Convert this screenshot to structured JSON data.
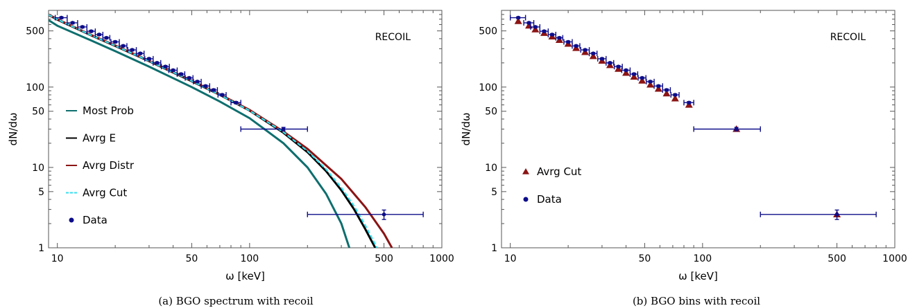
{
  "chart_data": [
    {
      "type": "line",
      "caption": "(a) BGO spectrum with recoil",
      "xlabel": "ω [keV]",
      "ylabel": "dN/dω",
      "annotation": "RECOIL",
      "x_scale": "log",
      "y_scale": "log",
      "xlim": [
        9,
        1000
      ],
      "ylim": [
        1,
        900
      ],
      "x_ticks": [
        "10",
        "50",
        "100",
        "500",
        "1000"
      ],
      "y_ticks": [
        "1",
        "5",
        "10",
        "50",
        "100",
        "500"
      ],
      "legend_position": "left",
      "series": [
        {
          "name": "Most Prob",
          "color": "#0e6e6e",
          "x": [
            9,
            10,
            15,
            20,
            30,
            50,
            70,
            100,
            150,
            200,
            250,
            300,
            330
          ],
          "y": [
            680,
            580,
            380,
            280,
            180,
            100,
            66,
            41,
            20,
            10,
            4.7,
            2.0,
            1.0
          ]
        },
        {
          "name": "Avrg E",
          "color": "#000000",
          "x": [
            9,
            10,
            15,
            20,
            30,
            50,
            70,
            100,
            150,
            200,
            250,
            300,
            350,
            400,
            450
          ],
          "y": [
            790,
            690,
            440,
            325,
            210,
            118,
            80,
            51,
            27,
            15.5,
            9,
            5.2,
            3.0,
            1.7,
            1.0
          ]
        },
        {
          "name": "Avrg Distr",
          "color": "#8b1414",
          "x": [
            9,
            10,
            15,
            20,
            30,
            50,
            70,
            100,
            150,
            200,
            300,
            400,
            500,
            550
          ],
          "y": [
            800,
            700,
            445,
            330,
            213,
            120,
            81,
            52,
            28,
            17,
            7.2,
            3.2,
            1.5,
            1.0
          ]
        },
        {
          "name": "Avrg Cut",
          "color": "#33e0f0",
          "dash": "6 3",
          "x": [
            9,
            10,
            15,
            20,
            30,
            50,
            70,
            100,
            150,
            200,
            250,
            300,
            350,
            400,
            460
          ],
          "y": [
            795,
            695,
            442,
            327,
            211,
            119,
            80,
            51,
            27.5,
            16,
            9.5,
            5.6,
            3.3,
            1.9,
            1.0
          ]
        },
        {
          "name": "Data",
          "color": "#0d0d8a",
          "marker": "circle",
          "x": [
            10.5,
            12,
            13.5,
            15,
            16.5,
            18,
            20,
            22,
            24.5,
            27,
            30,
            33,
            36.5,
            40,
            44,
            48.5,
            53.5,
            59,
            65,
            72,
            85,
            150,
            500
          ],
          "x_err_low": [
            0.75,
            0.75,
            0.75,
            0.75,
            0.75,
            0.75,
            1,
            1,
            1.25,
            1.25,
            1.5,
            1.5,
            1.75,
            2,
            2,
            2.25,
            2.5,
            3,
            3,
            3.5,
            5,
            60,
            300
          ],
          "x_err_high": [
            0.75,
            0.75,
            0.75,
            0.75,
            0.75,
            0.75,
            1,
            1,
            1.25,
            1.25,
            1.5,
            1.5,
            1.75,
            2,
            2,
            2.25,
            2.5,
            3,
            3,
            3.5,
            5,
            50,
            300
          ],
          "y": [
            730,
            630,
            560,
            495,
            450,
            410,
            365,
            325,
            290,
            262,
            225,
            200,
            180,
            162,
            145,
            130,
            117,
            103,
            92,
            80,
            64,
            30,
            2.6
          ],
          "y_err": [
            20,
            18,
            16,
            14,
            12,
            11,
            10,
            9,
            8,
            7,
            6,
            5.5,
            5,
            4.5,
            4,
            3.5,
            3.2,
            3,
            2.7,
            2.4,
            2,
            1.5,
            0.35
          ]
        }
      ]
    },
    {
      "type": "scatter",
      "caption": "(b) BGO bins with recoil",
      "xlabel": "ω [keV]",
      "ylabel": "dN/dω",
      "annotation": "RECOIL",
      "x_scale": "log",
      "y_scale": "log",
      "xlim": [
        9,
        1000
      ],
      "ylim": [
        1,
        900
      ],
      "x_ticks": [
        "10",
        "50",
        "100",
        "500",
        "1000"
      ],
      "y_ticks": [
        "1",
        "5",
        "10",
        "50",
        "100",
        "500"
      ],
      "legend_position": "left",
      "series": [
        {
          "name": "Avrg Cut",
          "color": "#8b1414",
          "marker": "triangle",
          "x": [
            11,
            12.5,
            13.5,
            15,
            16.5,
            18,
            20,
            22,
            24.5,
            27,
            30,
            33,
            36.5,
            40,
            44,
            48.5,
            53.5,
            59,
            65,
            72,
            85,
            150,
            500
          ],
          "y": [
            660,
            580,
            520,
            470,
            425,
            385,
            345,
            305,
            272,
            242,
            212,
            187,
            168,
            150,
            134,
            120,
            107,
            95,
            83,
            72,
            60,
            30,
            2.6
          ]
        },
        {
          "name": "Data",
          "color": "#0d0d8a",
          "marker": "circle",
          "x": [
            11,
            12.5,
            13.5,
            15,
            16.5,
            18,
            20,
            22,
            24.5,
            27,
            30,
            33,
            36.5,
            40,
            44,
            48.5,
            53.5,
            59,
            65,
            72,
            85,
            150,
            500
          ],
          "x_err_low": [
            1,
            0.75,
            0.75,
            0.75,
            0.75,
            0.75,
            1,
            1,
            1.25,
            1.25,
            1.5,
            1.5,
            1.75,
            2,
            2,
            2.25,
            2.5,
            3,
            3,
            3.5,
            5,
            60,
            300
          ],
          "x_err_high": [
            1,
            0.75,
            0.75,
            0.75,
            0.75,
            0.75,
            1,
            1,
            1.25,
            1.25,
            1.5,
            1.5,
            1.75,
            2,
            2,
            2.25,
            2.5,
            3,
            3,
            3.5,
            5,
            50,
            300
          ],
          "y": [
            730,
            630,
            560,
            495,
            450,
            410,
            365,
            325,
            290,
            262,
            225,
            200,
            180,
            162,
            145,
            130,
            117,
            103,
            92,
            80,
            64,
            30,
            2.6
          ],
          "y_err": [
            20,
            18,
            16,
            14,
            12,
            11,
            10,
            9,
            8,
            7,
            6,
            5.5,
            5,
            4.5,
            4,
            3.5,
            3.2,
            3,
            2.7,
            2.4,
            2,
            1.5,
            0.35
          ]
        }
      ]
    }
  ]
}
